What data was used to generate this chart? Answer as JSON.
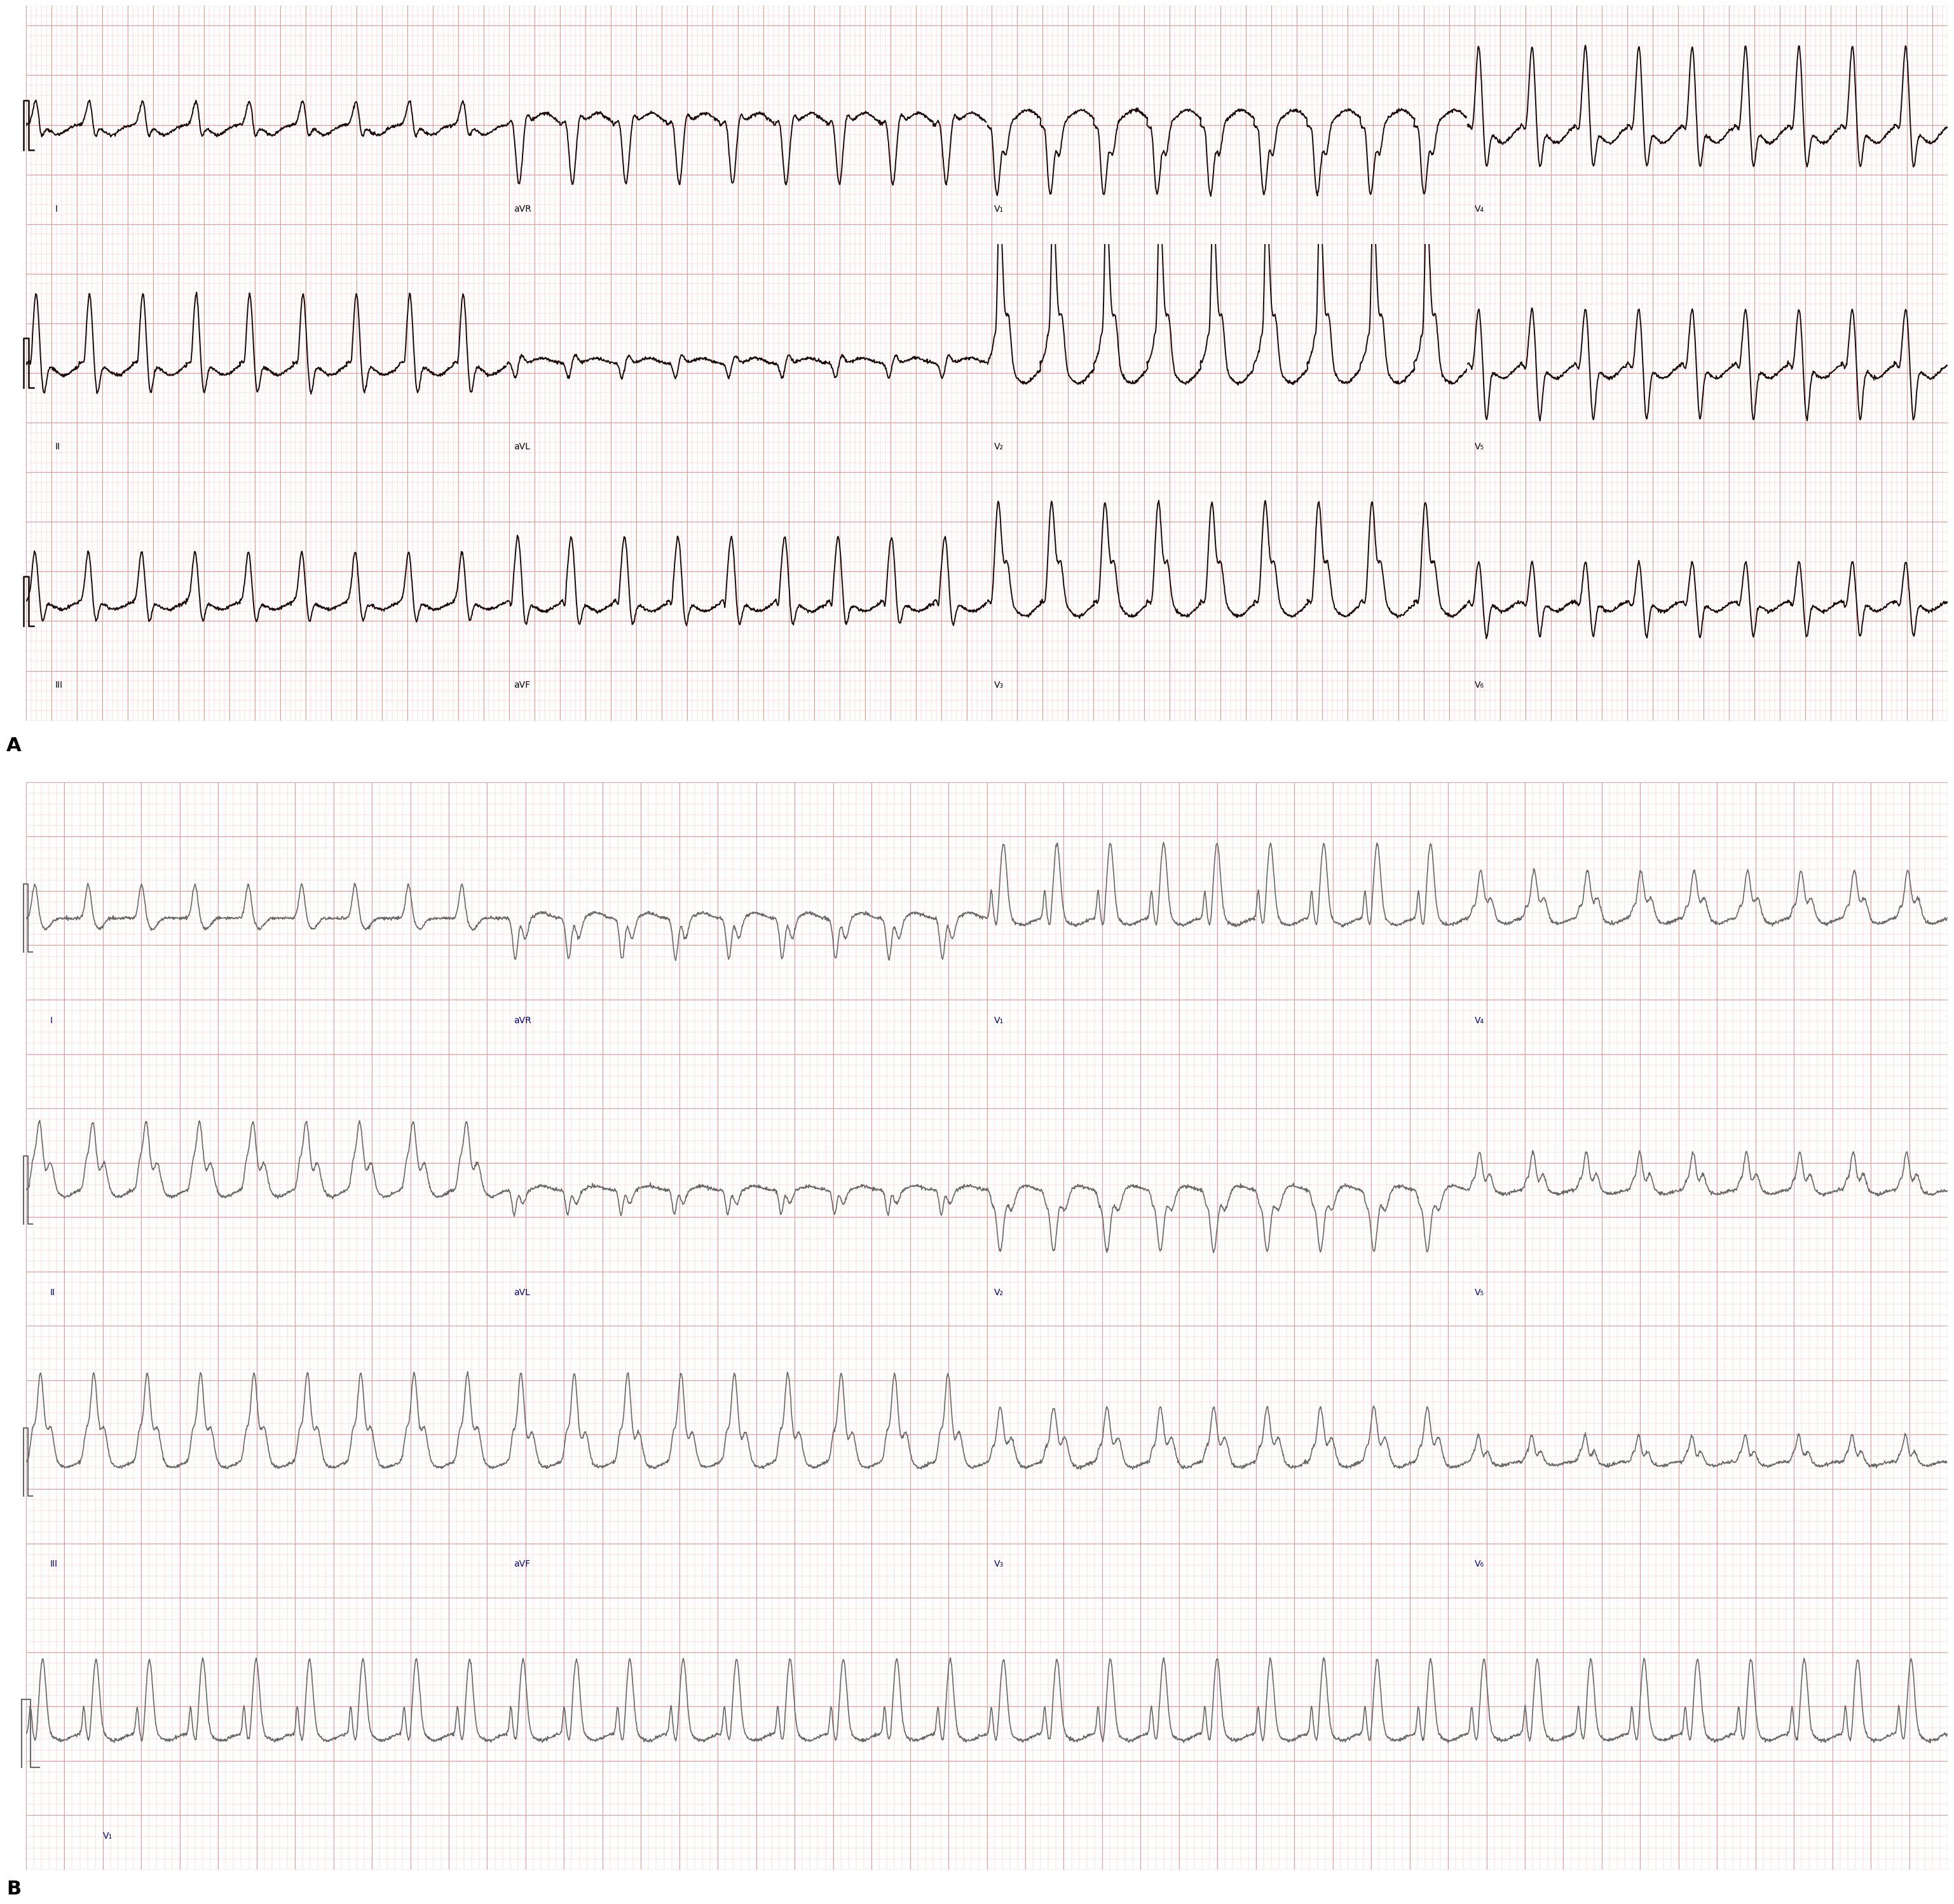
{
  "fig_width": 30.85,
  "fig_height": 30.39,
  "panel_A_bg": "#fdf0f0",
  "panel_B_bg": "#fdf0f0",
  "grid_minor_color": "#f2c0c0",
  "grid_major_color": "#e89898",
  "ecg_color_A": "#1a0a0a",
  "ecg_color_B": "#696969",
  "label_color_A": "#000000",
  "label_color_B": "#000080",
  "panel_label_color": "#000000",
  "border_color": "#c0c0c0",
  "label_A": "A",
  "label_B": "B",
  "ecg_lw_A": 1.4,
  "ecg_lw_B": 1.2,
  "cal_lw_A": 1.8,
  "cal_lw_B": 1.5
}
